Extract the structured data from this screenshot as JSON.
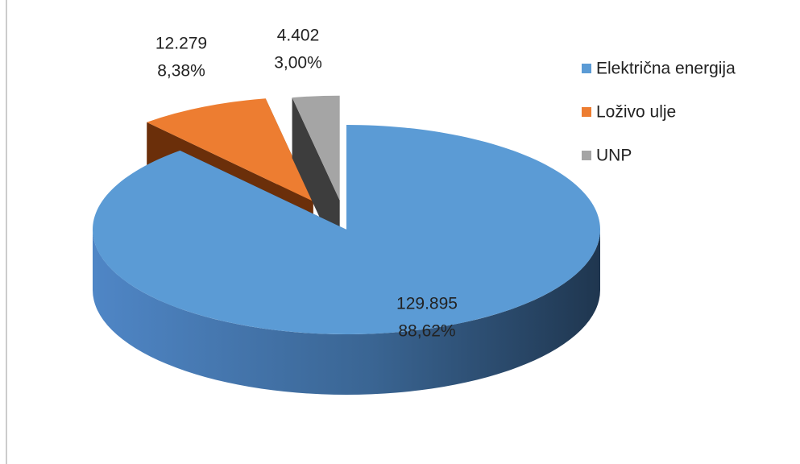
{
  "chart_data": {
    "type": "pie3d",
    "categories": [
      "Električna energija",
      "Loživo ulje",
      "UNP"
    ],
    "values": [
      129895,
      12279,
      4402
    ],
    "value_labels": [
      "129.895",
      "12.279",
      "4.402"
    ],
    "percentages": [
      88.62,
      8.38,
      3.0
    ],
    "percentage_labels": [
      "88,62%",
      "8,38%",
      "3,00%"
    ],
    "colors": [
      "#5b9bd5",
      "#ed7d31",
      "#a5a5a5"
    ],
    "legend": "right"
  }
}
